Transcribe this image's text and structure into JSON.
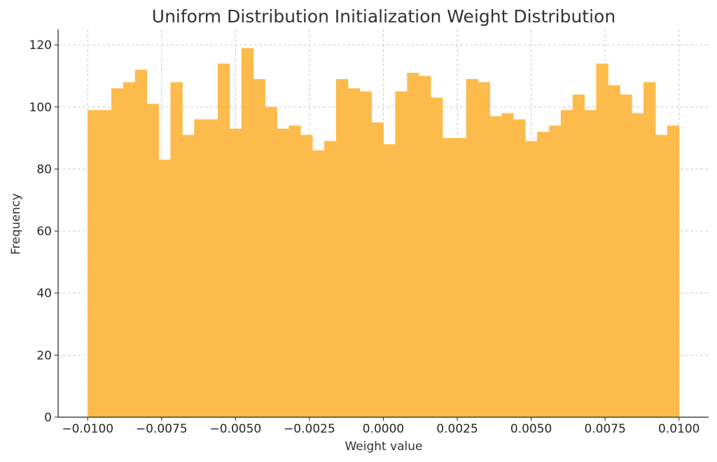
{
  "chart_data": {
    "type": "histogram",
    "title": "Uniform Distribution Initialization Weight Distribution",
    "xlabel": "Weight value",
    "ylabel": "Frequency",
    "xlim": [
      -0.011,
      0.011
    ],
    "ylim": [
      0,
      125
    ],
    "grid": true,
    "bar_color": "#fdbb4b",
    "bin_range": [
      -0.01,
      0.01
    ],
    "counts": [
      99,
      99,
      106,
      108,
      112,
      101,
      83,
      108,
      91,
      96,
      96,
      114,
      93,
      119,
      109,
      100,
      93,
      94,
      91,
      86,
      89,
      109,
      106,
      105,
      95,
      88,
      105,
      111,
      110,
      103,
      90,
      90,
      109,
      108,
      97,
      98,
      96,
      89,
      92,
      94,
      99,
      104,
      99,
      114,
      107,
      104,
      98,
      108,
      91,
      94
    ],
    "x_ticks": [
      -0.01,
      -0.0075,
      -0.005,
      -0.0025,
      0.0,
      0.0025,
      0.005,
      0.0075,
      0.01
    ],
    "x_tick_labels": [
      "−0.0100",
      "−0.0075",
      "−0.0050",
      "−0.0025",
      "0.0000",
      "0.0025",
      "0.0050",
      "0.0075",
      "0.0100"
    ],
    "y_ticks": [
      0,
      20,
      40,
      60,
      80,
      100,
      120
    ],
    "y_tick_labels": [
      "0",
      "20",
      "40",
      "60",
      "80",
      "100",
      "120"
    ]
  }
}
